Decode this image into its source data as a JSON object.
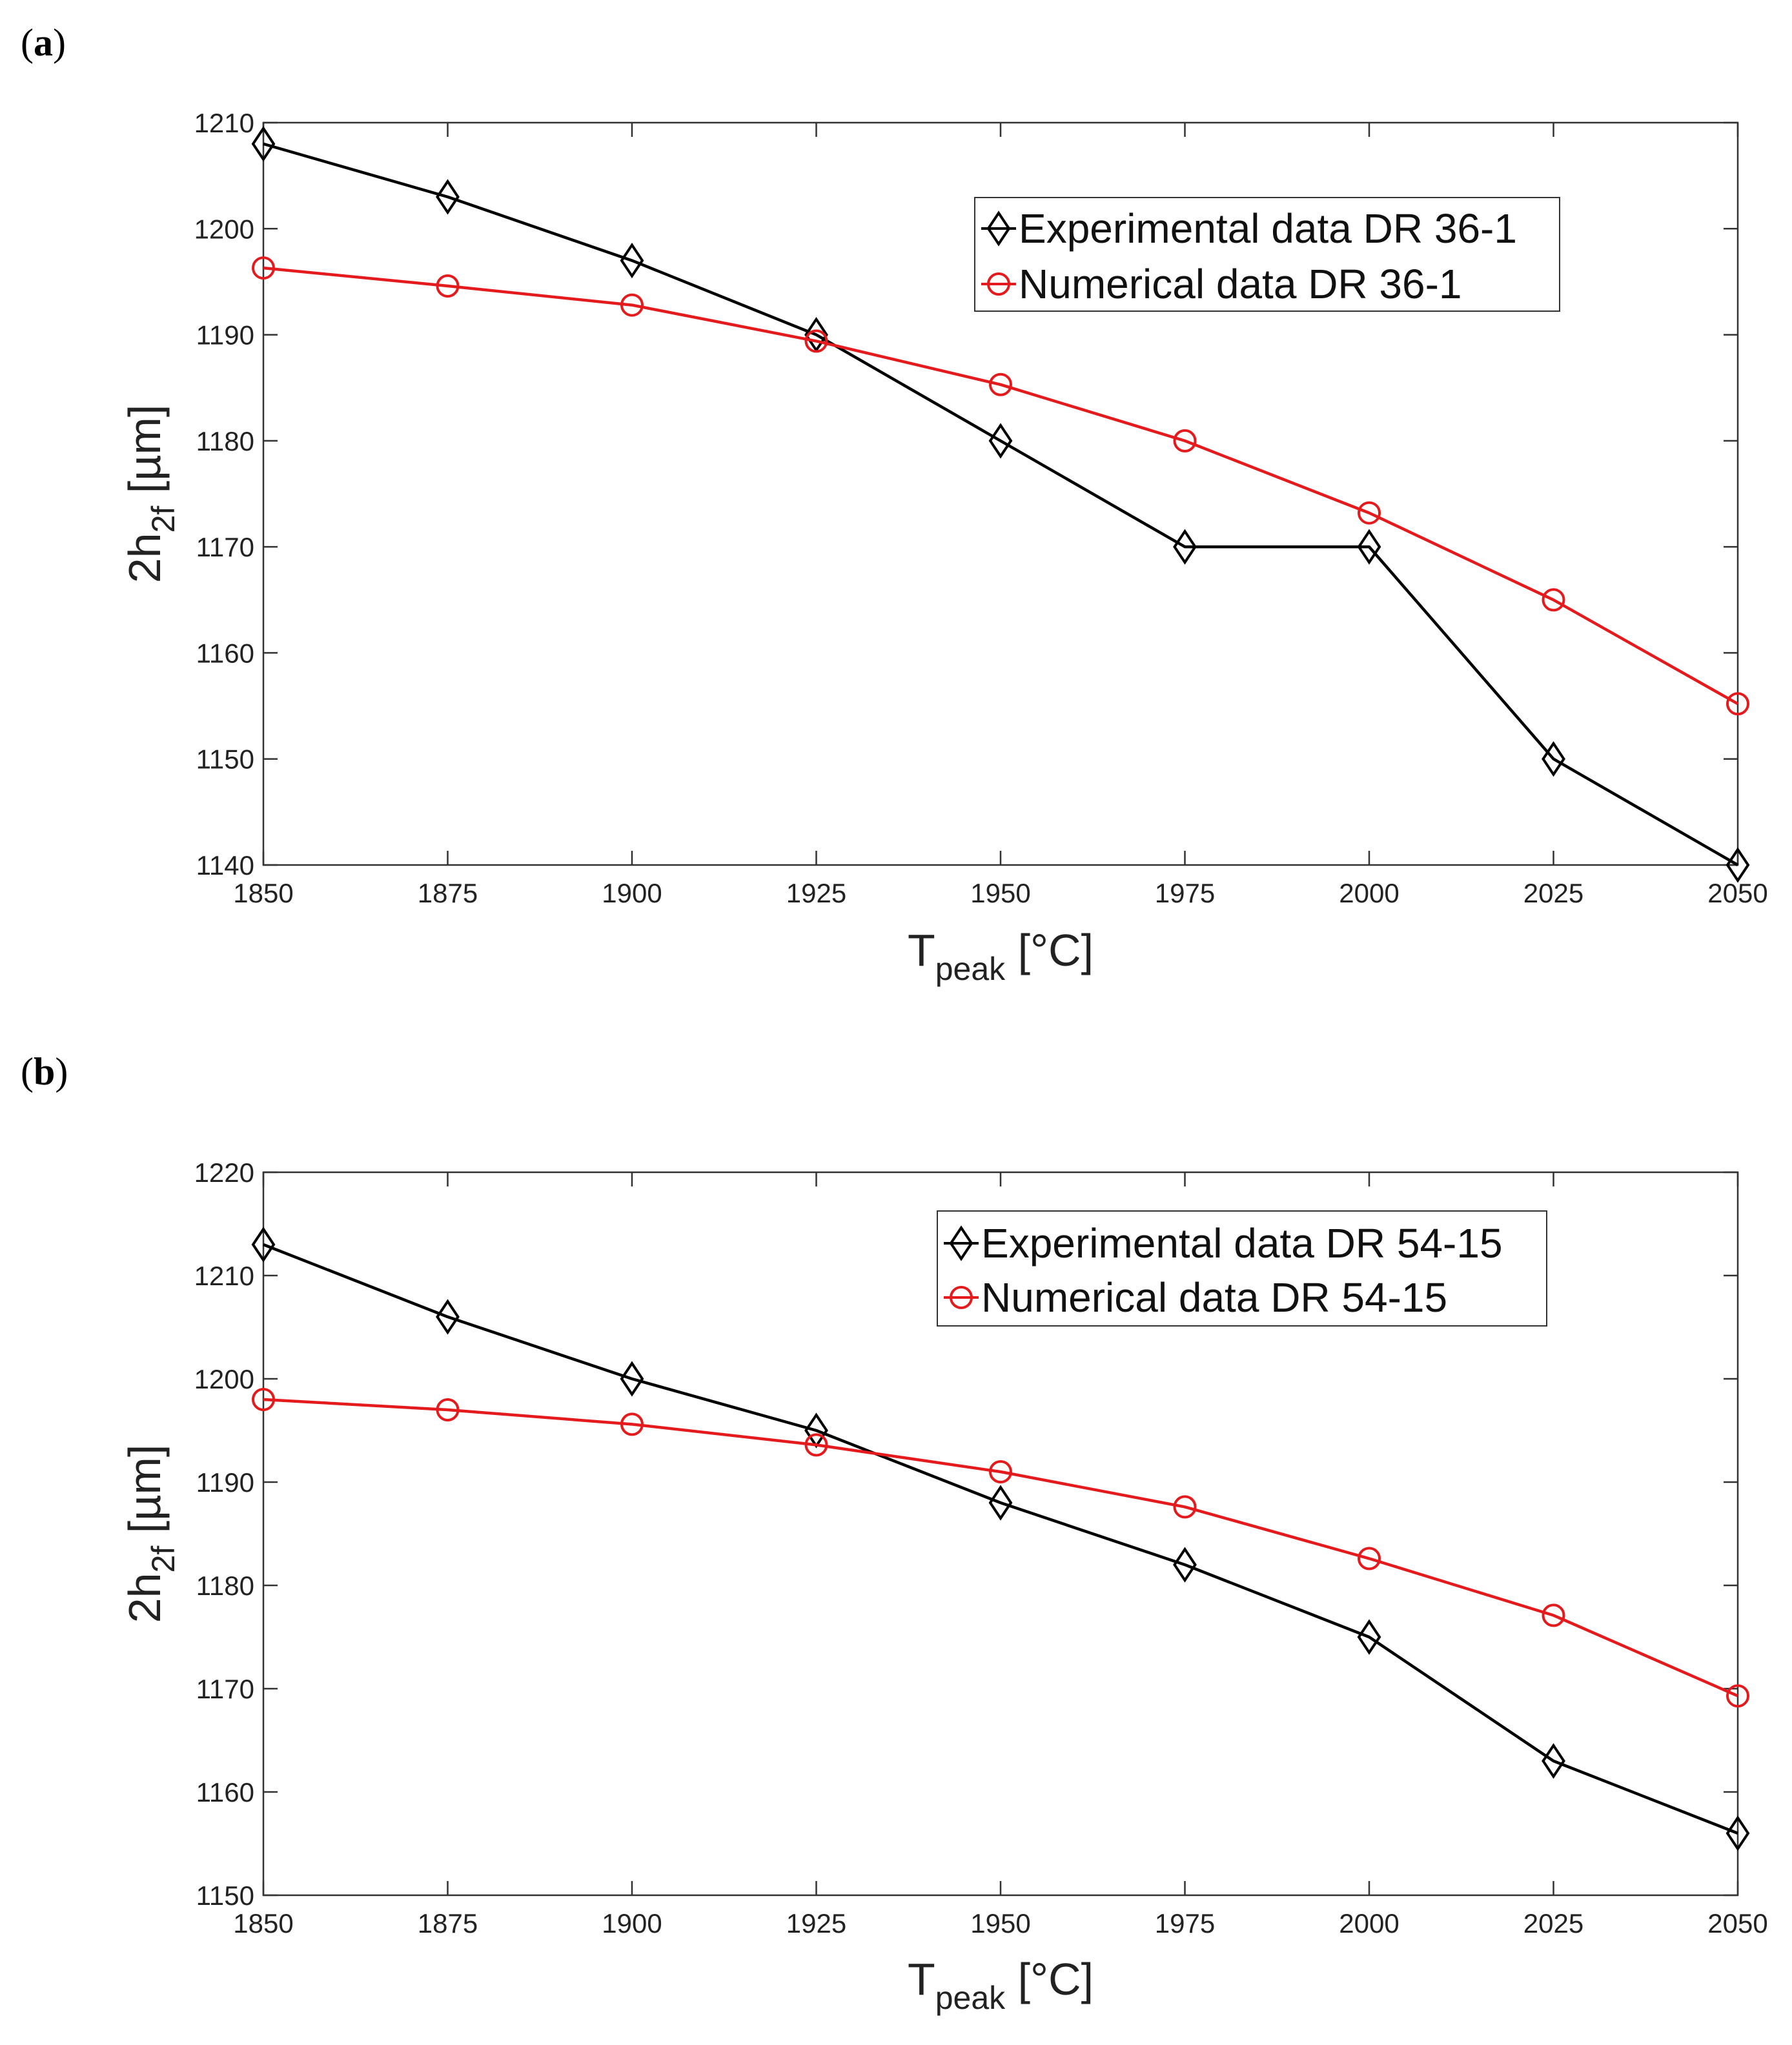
{
  "chart_data": [
    {
      "panel_label_open": "(",
      "panel_label_letter": "a",
      "panel_label_close": ")",
      "type": "line",
      "title": "",
      "x": [
        1850,
        1875,
        1900,
        1925,
        1950,
        1975,
        2000,
        2025,
        2050
      ],
      "xlim": [
        1850,
        2050
      ],
      "ylim": [
        1140,
        1210
      ],
      "xticks": [
        "1850",
        "1875",
        "1900",
        "1925",
        "1950",
        "1975",
        "2000",
        "2025",
        "2050"
      ],
      "yticks": [
        "1140",
        "1150",
        "1160",
        "1170",
        "1180",
        "1190",
        "1200",
        "1210"
      ],
      "xlabel_main": "T",
      "xlabel_sub": "peak",
      "xlabel_unit": " [°C]",
      "ylabel_main": "2h",
      "ylabel_sub": "2f",
      "ylabel_unit": " [µm]",
      "grid": false,
      "legend_position": "top-right",
      "series": [
        {
          "name": "Experimental data DR 36-1",
          "color": "#000000",
          "marker": "diamond",
          "values": [
            1208,
            1203,
            1197,
            1190,
            1180,
            1170,
            1170,
            1150,
            1140
          ]
        },
        {
          "name": "Numerical data DR 36-1",
          "color": "#e41a1c",
          "marker": "circle",
          "values": [
            1196.3,
            1194.6,
            1192.8,
            1189.4,
            1185.3,
            1180,
            1173.2,
            1165,
            1155.2
          ]
        }
      ]
    },
    {
      "panel_label_open": "(",
      "panel_label_letter": "b",
      "panel_label_close": ")",
      "type": "line",
      "title": "",
      "x": [
        1850,
        1875,
        1900,
        1925,
        1950,
        1975,
        2000,
        2025,
        2050
      ],
      "xlim": [
        1850,
        2050
      ],
      "ylim": [
        1150,
        1220
      ],
      "xticks": [
        "1850",
        "1875",
        "1900",
        "1925",
        "1950",
        "1975",
        "2000",
        "2025",
        "2050"
      ],
      "yticks": [
        "1150",
        "1160",
        "1170",
        "1180",
        "1190",
        "1200",
        "1210",
        "1220"
      ],
      "xlabel_main": "T",
      "xlabel_sub": "peak",
      "xlabel_unit": " [°C]",
      "ylabel_main": "2h",
      "ylabel_sub": "2f",
      "ylabel_unit": " [µm]",
      "grid": false,
      "legend_position": "top-right",
      "series": [
        {
          "name": "Experimental data DR 54-15",
          "color": "#000000",
          "marker": "diamond",
          "values": [
            1213,
            1206,
            1200,
            1195,
            1188,
            1182,
            1175,
            1163,
            1156
          ]
        },
        {
          "name": "Numerical data DR 54-15",
          "color": "#e41a1c",
          "marker": "circle",
          "values": [
            1198,
            1197,
            1195.6,
            1193.6,
            1191,
            1187.6,
            1182.6,
            1177.1,
            1169.3
          ]
        }
      ]
    }
  ]
}
